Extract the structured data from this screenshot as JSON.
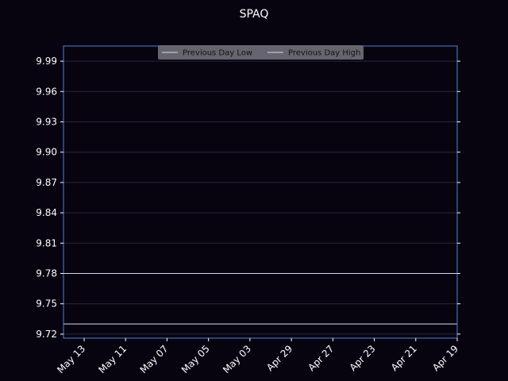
{
  "chart_data": {
    "type": "line",
    "title": "SPAQ",
    "xlabel": "",
    "ylabel": "",
    "categories": [
      "May 13",
      "May 11",
      "May 07",
      "May 05",
      "May 03",
      "Apr 29",
      "Apr 27",
      "Apr 23",
      "Apr 21",
      "Apr 19"
    ],
    "ylim": [
      9.716,
      10.005
    ],
    "yticks": [
      9.72,
      9.75,
      9.78,
      9.81,
      9.84,
      9.87,
      9.9,
      9.93,
      9.96,
      9.99
    ],
    "ytick_labels": [
      "9.72",
      "9.75",
      "9.78",
      "9.81",
      "9.84",
      "9.87",
      "9.90",
      "9.93",
      "9.96",
      "9.99"
    ],
    "grid": true,
    "legend_placement": "top-center",
    "series": [
      {
        "name": "Previous Day Low",
        "values": [
          9.73,
          9.73,
          9.73,
          9.73,
          9.73,
          9.73,
          9.73,
          9.73,
          9.73,
          9.73
        ]
      },
      {
        "name": "Previous Day High",
        "values": [
          9.78,
          9.78,
          9.78,
          9.78,
          9.78,
          9.78,
          9.78,
          9.78,
          9.78,
          9.78
        ]
      }
    ],
    "colors": {
      "background": "#07040f",
      "axes_frame": "#4f7fe0",
      "grid": "#2a2640",
      "series_line": "#d6daf2",
      "legend_bg": "#6c6a73",
      "text": "#ffffff"
    }
  }
}
